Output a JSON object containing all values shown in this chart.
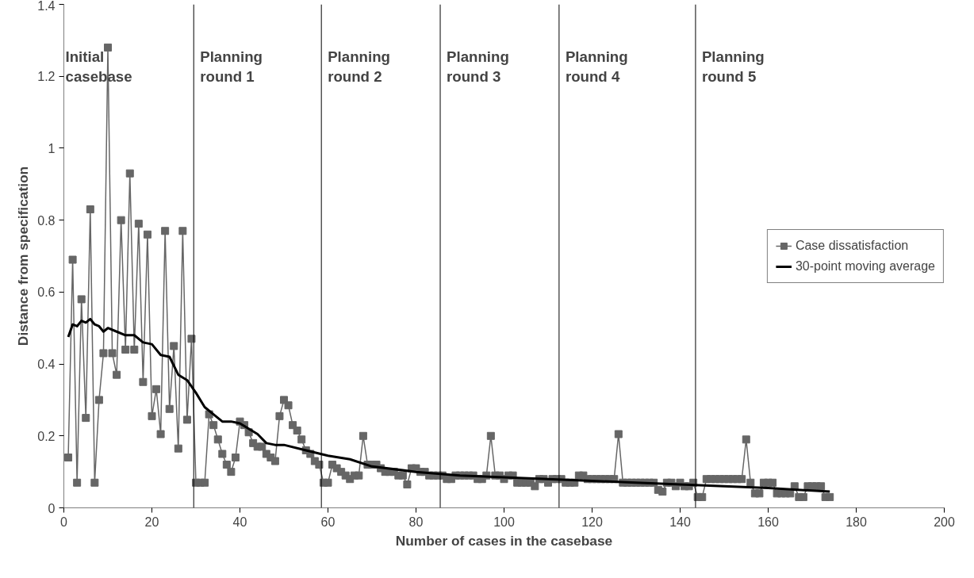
{
  "chart_data": {
    "type": "line",
    "xlabel": "Number of cases in the casebase",
    "ylabel": "Distance from specification",
    "xlim": [
      0,
      200
    ],
    "xticks": [
      0,
      20,
      40,
      60,
      80,
      100,
      120,
      140,
      160,
      180,
      200
    ],
    "ylim": [
      0,
      1.4
    ],
    "yticks": [
      0,
      0.2,
      0.4,
      0.6,
      0.8,
      1,
      1.2,
      1.4
    ],
    "grid": false,
    "legend": "right",
    "annotations": [
      "Initial\ncasebase"
    ],
    "ref_lines": [
      {
        "axis": "x",
        "value": 29.5,
        "label": "Planning\nround 1",
        "color": "#000000"
      },
      {
        "axis": "x",
        "value": 58.5,
        "label": "Planning\nround 2",
        "color": "#000000"
      },
      {
        "axis": "x",
        "value": 85.5,
        "label": "Planning\nround 3",
        "color": "#000000"
      },
      {
        "axis": "x",
        "value": 112.5,
        "label": "Planning\nround 4",
        "color": "#000000"
      },
      {
        "axis": "x",
        "value": 143.5,
        "label": "Planning\nround 5",
        "color": "#000000"
      }
    ],
    "series": [
      {
        "name": "Case dissatisfaction",
        "color": "#666666",
        "marker": "square",
        "x": [
          1,
          2,
          3,
          4,
          5,
          6,
          7,
          8,
          9,
          10,
          11,
          12,
          13,
          14,
          15,
          16,
          17,
          18,
          19,
          20,
          21,
          22,
          23,
          24,
          25,
          26,
          27,
          28,
          29,
          30,
          31,
          32,
          33,
          34,
          35,
          36,
          37,
          38,
          39,
          40,
          41,
          42,
          43,
          44,
          45,
          46,
          47,
          48,
          49,
          50,
          51,
          52,
          53,
          54,
          55,
          56,
          57,
          58,
          59,
          60,
          61,
          62,
          63,
          64,
          65,
          66,
          67,
          68,
          69,
          70,
          71,
          72,
          73,
          74,
          75,
          76,
          77,
          78,
          79,
          80,
          81,
          82,
          83,
          84,
          85,
          86,
          87,
          88,
          89,
          90,
          91,
          92,
          93,
          94,
          95,
          96,
          97,
          98,
          99,
          100,
          101,
          102,
          103,
          104,
          105,
          106,
          107,
          108,
          109,
          110,
          111,
          112,
          113,
          114,
          115,
          116,
          117,
          118,
          119,
          120,
          121,
          122,
          123,
          124,
          125,
          126,
          127,
          128,
          129,
          130,
          131,
          132,
          133,
          134,
          135,
          136,
          137,
          138,
          139,
          140,
          141,
          142,
          143,
          144,
          145,
          146,
          147,
          148,
          149,
          150,
          151,
          152,
          153,
          154,
          155,
          156,
          157,
          158,
          159,
          160,
          161,
          162,
          163,
          164,
          165,
          166,
          167,
          168,
          169,
          170,
          171,
          172,
          173,
          174
        ],
        "values": [
          0.14,
          0.69,
          0.07,
          0.58,
          0.25,
          0.83,
          0.07,
          0.3,
          0.43,
          1.28,
          0.43,
          0.37,
          0.8,
          0.44,
          0.93,
          0.44,
          0.79,
          0.35,
          0.76,
          0.255,
          0.33,
          0.205,
          0.77,
          0.275,
          0.45,
          0.165,
          0.77,
          0.245,
          0.47,
          0.07,
          0.07,
          0.07,
          0.26,
          0.23,
          0.19,
          0.15,
          0.12,
          0.1,
          0.14,
          0.24,
          0.23,
          0.21,
          0.18,
          0.17,
          0.17,
          0.15,
          0.14,
          0.13,
          0.255,
          0.3,
          0.285,
          0.23,
          0.215,
          0.19,
          0.16,
          0.15,
          0.13,
          0.12,
          0.07,
          0.07,
          0.12,
          0.11,
          0.1,
          0.09,
          0.08,
          0.09,
          0.09,
          0.2,
          0.12,
          0.12,
          0.12,
          0.11,
          0.1,
          0.1,
          0.1,
          0.09,
          0.09,
          0.065,
          0.11,
          0.11,
          0.1,
          0.1,
          0.09,
          0.09,
          0.09,
          0.09,
          0.08,
          0.08,
          0.09,
          0.09,
          0.09,
          0.09,
          0.09,
          0.08,
          0.08,
          0.09,
          0.2,
          0.09,
          0.09,
          0.08,
          0.09,
          0.09,
          0.07,
          0.07,
          0.07,
          0.07,
          0.06,
          0.08,
          0.08,
          0.07,
          0.08,
          0.08,
          0.08,
          0.07,
          0.07,
          0.07,
          0.09,
          0.09,
          0.08,
          0.08,
          0.08,
          0.08,
          0.08,
          0.08,
          0.08,
          0.205,
          0.07,
          0.07,
          0.07,
          0.07,
          0.07,
          0.07,
          0.07,
          0.07,
          0.05,
          0.045,
          0.07,
          0.07,
          0.06,
          0.07,
          0.06,
          0.06,
          0.07,
          0.03,
          0.03,
          0.08,
          0.08,
          0.08,
          0.08,
          0.08,
          0.08,
          0.08,
          0.08,
          0.08,
          0.19,
          0.07,
          0.04,
          0.04,
          0.07,
          0.07,
          0.07,
          0.04,
          0.04,
          0.04,
          0.04,
          0.06,
          0.03,
          0.03,
          0.06,
          0.06,
          0.06,
          0.06,
          0.03,
          0.03
        ]
      },
      {
        "name": "30-point moving average",
        "color": "#000000",
        "marker": "none",
        "x": [
          1,
          2,
          3,
          4,
          5,
          6,
          7,
          8,
          9,
          10,
          12,
          14,
          16,
          18,
          20,
          22,
          24,
          26,
          28,
          30,
          32,
          34,
          36,
          38,
          40,
          42,
          44,
          46,
          48,
          50,
          55,
          60,
          65,
          70,
          80,
          90,
          100,
          110,
          120,
          130,
          140,
          150,
          160,
          174
        ],
        "values": [
          0.475,
          0.51,
          0.505,
          0.52,
          0.515,
          0.525,
          0.51,
          0.505,
          0.49,
          0.5,
          0.49,
          0.48,
          0.48,
          0.46,
          0.455,
          0.425,
          0.42,
          0.37,
          0.355,
          0.32,
          0.28,
          0.26,
          0.24,
          0.24,
          0.235,
          0.22,
          0.205,
          0.18,
          0.175,
          0.175,
          0.16,
          0.145,
          0.135,
          0.115,
          0.1,
          0.09,
          0.085,
          0.08,
          0.075,
          0.07,
          0.065,
          0.06,
          0.055,
          0.045
        ]
      }
    ]
  }
}
